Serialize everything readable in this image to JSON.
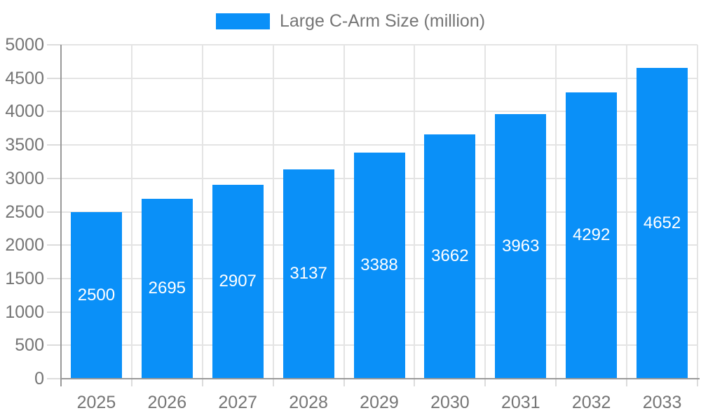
{
  "chart_data": {
    "type": "bar",
    "title": "Large C-Arm Size (million)",
    "legend": [
      "Large C-Arm Size (million)"
    ],
    "legend_position": "top",
    "categories": [
      "2025",
      "2026",
      "2027",
      "2028",
      "2029",
      "2030",
      "2031",
      "2032",
      "2033"
    ],
    "values": [
      2500,
      2695,
      2907,
      3137,
      3388,
      3662,
      3963,
      4292,
      4652
    ],
    "value_labels_shown": true,
    "value_label_position": "inside-center",
    "xlabel": "",
    "ylabel": "",
    "ylim": [
      0,
      5000
    ],
    "yticks": [
      0,
      500,
      1000,
      1500,
      2000,
      2500,
      3000,
      3500,
      4000,
      4500,
      5000
    ],
    "grid": true
  },
  "colors": {
    "bar": "#0a90f8",
    "grid_line": "#e4e4e4",
    "axis_line": "#999999",
    "tick_mark": "#dcdcdc",
    "tick_text": "#757575",
    "value_label_text": "#ffffff",
    "background": "#ffffff"
  }
}
